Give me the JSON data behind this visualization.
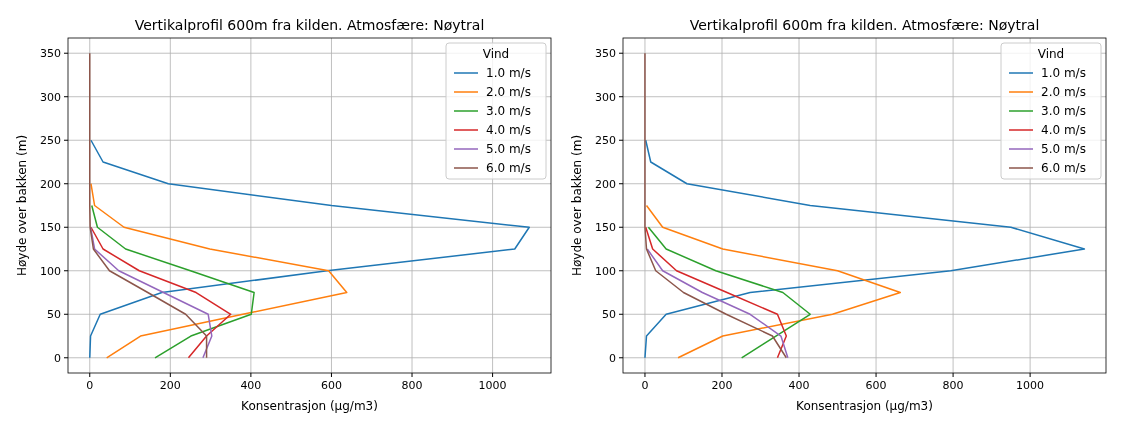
{
  "chart_data": [
    {
      "type": "line",
      "title": "Vertikalprofil 600m fra kilden. Atmosfære: Nøytral",
      "xlabel": "Konsentrasjon (µg/m3)",
      "ylabel": "Høyde over bakken (m)",
      "legend_title": "Vind",
      "legend": "top right",
      "grid": true,
      "xlim": [
        -54,
        1145
      ],
      "ylim": [
        -17.5,
        367.5
      ],
      "xticks": [
        0,
        200,
        400,
        600,
        800,
        1000
      ],
      "yticks": [
        0,
        50,
        100,
        150,
        200,
        250,
        300,
        350
      ],
      "series": [
        {
          "name": "1.0 m/s",
          "color": "#1f77b4",
          "values": [
            0,
            25,
            50,
            75,
            100,
            125,
            150,
            175,
            200,
            225,
            250
          ],
          "x": [
            0,
            2,
            26,
            179,
            589,
            1055,
            1091,
            600,
            195,
            33,
            3
          ]
        },
        {
          "name": "2.0 m/s",
          "color": "#ff7f0e",
          "values": [
            0,
            25,
            50,
            75,
            100,
            125,
            150,
            175,
            200
          ],
          "x": [
            42,
            126,
            380,
            638,
            593,
            298,
            85,
            12,
            3
          ]
        },
        {
          "name": "3.0 m/s",
          "color": "#2ca02c",
          "values": [
            0,
            25,
            50,
            75,
            100,
            125,
            150,
            175
          ],
          "x": [
            162,
            251,
            401,
            408,
            250,
            89,
            19,
            5
          ]
        },
        {
          "name": "4.0 m/s",
          "color": "#d62728",
          "values": [
            0,
            25,
            50,
            75,
            100,
            125,
            150
          ],
          "x": [
            245,
            290,
            350,
            264,
            123,
            33,
            3
          ]
        },
        {
          "name": "5.0 m/s",
          "color": "#9467bd",
          "values": [
            0,
            25,
            50,
            75,
            100,
            125,
            150
          ],
          "x": [
            281,
            303,
            294,
            183,
            72,
            12,
            2
          ]
        },
        {
          "name": "6.0 m/s",
          "color": "#8c564b",
          "values": [
            0,
            25,
            50,
            75,
            100,
            125,
            150,
            175,
            200,
            225,
            250,
            275,
            300,
            325,
            350
          ],
          "x": [
            290,
            290,
            238,
            144,
            49,
            9,
            1,
            0,
            0,
            0,
            0,
            0,
            0,
            0,
            0
          ]
        }
      ]
    },
    {
      "type": "line",
      "title": "Vertikalprofil 600m fra kilden. Atmosfære: Nøytral",
      "xlabel": "Konsentrasjon (µg/m3)",
      "ylabel": "Høyde over bakken (m)",
      "legend_title": "Vind",
      "legend": "top right",
      "grid": true,
      "xlim": [
        -57,
        1197
      ],
      "ylim": [
        -17.5,
        367.5
      ],
      "xticks": [
        0,
        200,
        400,
        600,
        800,
        1000
      ],
      "yticks": [
        0,
        50,
        100,
        150,
        200,
        250,
        300,
        350
      ],
      "series": [
        {
          "name": "1.0 m/s",
          "color": "#1f77b4",
          "values": [
            0,
            25,
            50,
            75,
            100,
            125,
            150,
            175,
            200,
            225,
            250
          ],
          "x": [
            0,
            4,
            55,
            273,
            794,
            1141,
            950,
            429,
            109,
            15,
            2
          ]
        },
        {
          "name": "2.0 m/s",
          "color": "#ff7f0e",
          "values": [
            0,
            25,
            50,
            75,
            100,
            125,
            150,
            175
          ],
          "x": [
            86,
            202,
            487,
            663,
            500,
            202,
            46,
            4
          ]
        },
        {
          "name": "3.0 m/s",
          "color": "#2ca02c",
          "values": [
            0,
            25,
            50,
            75,
            100,
            125,
            150
          ],
          "x": [
            251,
            340,
            429,
            358,
            184,
            55,
            9
          ]
        },
        {
          "name": "4.0 m/s",
          "color": "#d62728",
          "values": [
            0,
            25,
            50,
            75,
            100,
            125,
            150
          ],
          "x": [
            344,
            367,
            344,
            213,
            82,
            20,
            2
          ]
        },
        {
          "name": "5.0 m/s",
          "color": "#9467bd",
          "values": [
            0,
            25,
            50,
            75,
            100,
            125
          ],
          "x": [
            371,
            353,
            273,
            149,
            46,
            6
          ]
        },
        {
          "name": "6.0 m/s",
          "color": "#8c564b",
          "values": [
            0,
            25,
            50,
            75,
            100,
            125,
            150,
            175,
            200,
            225,
            250,
            275,
            300,
            325,
            350
          ],
          "x": [
            367,
            331,
            211,
            100,
            28,
            4,
            0,
            0,
            0,
            0,
            0,
            0,
            0,
            0,
            0
          ]
        }
      ]
    }
  ]
}
